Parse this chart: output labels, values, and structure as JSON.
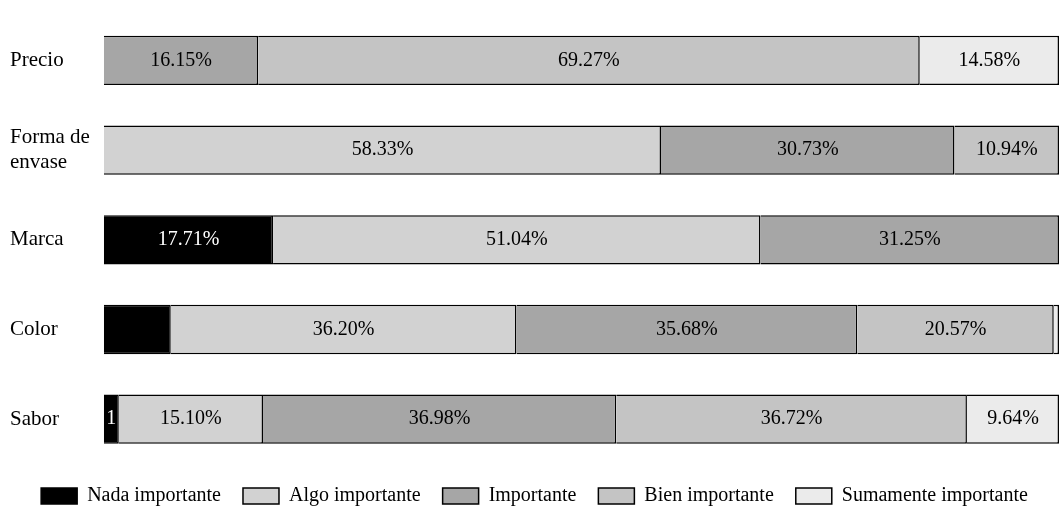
{
  "chart_data": {
    "type": "bar",
    "orientation": "horizontal",
    "stacked": true,
    "legend": "bottom",
    "tick_labels": "y",
    "categories": [
      "Precio",
      "Forma de envase",
      "Marca",
      "Color",
      "Sabor"
    ],
    "series": [
      {
        "name": "Nada importante",
        "color": "#000000",
        "values": [
          null,
          null,
          17.71,
          7.0,
          1.56
        ],
        "value_labels": [
          null,
          null,
          "17.71%",
          null,
          null
        ]
      },
      {
        "name": "Algo importante",
        "color": "#d2d2d2",
        "values": [
          null,
          58.33,
          51.04,
          36.2,
          15.1
        ],
        "value_labels": [
          null,
          "58.33%",
          "51.04%",
          "36.20%",
          "15.10%"
        ]
      },
      {
        "name": "Importante",
        "color": "#a6a6a6",
        "values": [
          16.15,
          30.73,
          31.25,
          35.68,
          36.98
        ],
        "value_labels": [
          "16.15%",
          "30.73%",
          "31.25%",
          "35.68%",
          "36.98%"
        ]
      },
      {
        "name": "Bien importante",
        "color": "#c4c4c4",
        "values": [
          69.27,
          10.94,
          null,
          20.57,
          36.72
        ],
        "value_labels": [
          "69.27%",
          "10.94%",
          null,
          "20.57%",
          "36.72%"
        ]
      },
      {
        "name": "Sumamente importante",
        "color": "#ebebeb",
        "values": [
          14.58,
          null,
          null,
          0.55,
          9.64
        ],
        "value_labels": [
          "14.58%",
          null,
          null,
          null,
          "9.64%"
        ]
      }
    ],
    "annotations": [
      "1"
    ]
  }
}
